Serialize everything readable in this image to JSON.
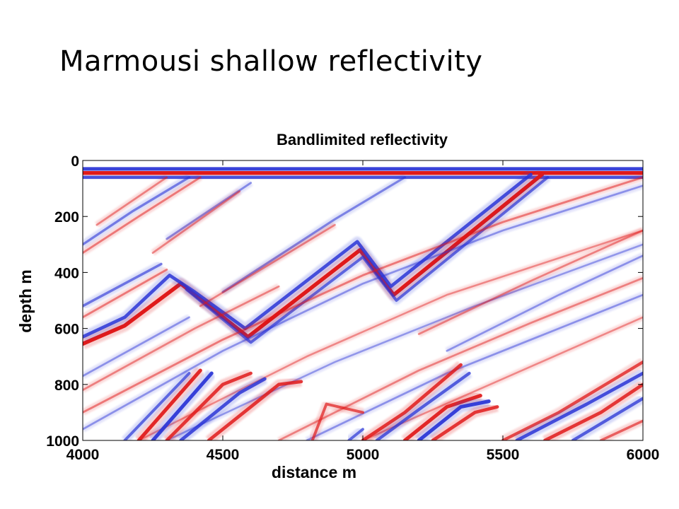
{
  "slide": {
    "title": "Marmousi shallow reflectivity"
  },
  "chart_data": {
    "type": "heatmap",
    "title": "Bandlimited reflectivity",
    "xlabel": "distance m",
    "ylabel": "depth m",
    "xlim": [
      4000,
      6000
    ],
    "ylim": [
      0,
      1000
    ],
    "y_inverted": true,
    "x_ticks": [
      4000,
      4500,
      5000,
      5500,
      6000
    ],
    "y_ticks": [
      0,
      200,
      400,
      600,
      800,
      1000
    ],
    "grid": false,
    "colormap": {
      "negative": "#2a35d6",
      "zero": "#ffffff",
      "positive": "#e01a1a"
    },
    "reflectors": [
      {
        "polarity": "positive",
        "strength": 1.0,
        "points": [
          [
            4000,
            45
          ],
          [
            6000,
            45
          ]
        ]
      },
      {
        "polarity": "negative",
        "strength": 0.9,
        "points": [
          [
            4000,
            30
          ],
          [
            6000,
            30
          ]
        ]
      },
      {
        "polarity": "negative",
        "strength": 0.8,
        "points": [
          [
            4000,
            60
          ],
          [
            6000,
            60
          ]
        ]
      },
      {
        "polarity": "positive",
        "strength": 1.0,
        "points": [
          [
            4000,
            655
          ],
          [
            4150,
            590
          ],
          [
            4350,
            440
          ],
          [
            4590,
            630
          ],
          [
            4990,
            320
          ],
          [
            5110,
            480
          ],
          [
            5640,
            50
          ]
        ]
      },
      {
        "polarity": "negative",
        "strength": 0.8,
        "points": [
          [
            4000,
            630
          ],
          [
            4150,
            560
          ],
          [
            4310,
            410
          ],
          [
            4400,
            470
          ],
          [
            4580,
            600
          ],
          [
            4980,
            290
          ],
          [
            5100,
            450
          ],
          [
            5600,
            50
          ]
        ]
      },
      {
        "polarity": "negative",
        "strength": 0.6,
        "points": [
          [
            4370,
            460
          ],
          [
            4600,
            650
          ],
          [
            5000,
            345
          ],
          [
            5120,
            500
          ],
          [
            5660,
            60
          ]
        ]
      },
      {
        "polarity": "positive",
        "strength": 0.35,
        "points": [
          [
            4000,
            560
          ],
          [
            4300,
            390
          ]
        ]
      },
      {
        "polarity": "negative",
        "strength": 0.5,
        "points": [
          [
            4000,
            520
          ],
          [
            4280,
            370
          ]
        ]
      },
      {
        "polarity": "positive",
        "strength": 0.35,
        "points": [
          [
            4000,
            330
          ],
          [
            4200,
            200
          ],
          [
            4420,
            60
          ]
        ]
      },
      {
        "polarity": "negative",
        "strength": 0.45,
        "points": [
          [
            4000,
            300
          ],
          [
            4180,
            180
          ],
          [
            4380,
            60
          ]
        ]
      },
      {
        "polarity": "positive",
        "strength": 0.3,
        "points": [
          [
            4050,
            230
          ],
          [
            4300,
            60
          ]
        ]
      },
      {
        "polarity": "negative",
        "strength": 0.35,
        "points": [
          [
            4300,
            280
          ],
          [
            4600,
            80
          ]
        ]
      },
      {
        "polarity": "positive",
        "strength": 0.3,
        "points": [
          [
            4250,
            330
          ],
          [
            4560,
            110
          ]
        ]
      },
      {
        "polarity": "negative",
        "strength": 0.4,
        "points": [
          [
            4500,
            470
          ],
          [
            4900,
            210
          ],
          [
            5150,
            60
          ]
        ]
      },
      {
        "polarity": "positive",
        "strength": 0.3,
        "points": [
          [
            4420,
            520
          ],
          [
            4900,
            230
          ]
        ]
      },
      {
        "polarity": "negative",
        "strength": 0.3,
        "points": [
          [
            4000,
            960
          ],
          [
            4500,
            680
          ],
          [
            5000,
            440
          ],
          [
            5500,
            250
          ],
          [
            6000,
            90
          ]
        ]
      },
      {
        "polarity": "positive",
        "strength": 0.35,
        "points": [
          [
            4000,
            900
          ],
          [
            4500,
            640
          ],
          [
            5000,
            410
          ],
          [
            5500,
            220
          ],
          [
            6000,
            60
          ]
        ]
      },
      {
        "polarity": "positive",
        "strength": 0.3,
        "points": [
          [
            4000,
            820
          ],
          [
            4400,
            600
          ],
          [
            4700,
            450
          ]
        ]
      },
      {
        "polarity": "negative",
        "strength": 0.3,
        "points": [
          [
            4000,
            770
          ],
          [
            4380,
            560
          ]
        ]
      },
      {
        "polarity": "positive",
        "strength": 0.25,
        "points": [
          [
            4200,
            1000
          ],
          [
            4800,
            700
          ],
          [
            5300,
            480
          ],
          [
            6000,
            250
          ]
        ]
      },
      {
        "polarity": "negative",
        "strength": 0.25,
        "points": [
          [
            4300,
            1000
          ],
          [
            4900,
            720
          ],
          [
            5400,
            520
          ],
          [
            6000,
            300
          ]
        ]
      },
      {
        "polarity": "positive",
        "strength": 0.3,
        "points": [
          [
            4700,
            1000
          ],
          [
            5200,
            750
          ],
          [
            5600,
            580
          ],
          [
            6000,
            420
          ]
        ]
      },
      {
        "polarity": "negative",
        "strength": 0.3,
        "points": [
          [
            4800,
            1000
          ],
          [
            5300,
            760
          ],
          [
            6000,
            480
          ]
        ]
      },
      {
        "polarity": "positive",
        "strength": 0.25,
        "points": [
          [
            5000,
            1000
          ],
          [
            5500,
            780
          ],
          [
            6000,
            560
          ]
        ]
      },
      {
        "polarity": "positive",
        "strength": 0.9,
        "points": [
          [
            4200,
            1000
          ],
          [
            4420,
            750
          ]
        ]
      },
      {
        "polarity": "negative",
        "strength": 0.9,
        "points": [
          [
            4250,
            1000
          ],
          [
            4460,
            760
          ]
        ]
      },
      {
        "polarity": "positive",
        "strength": 0.8,
        "points": [
          [
            4300,
            1000
          ],
          [
            4500,
            800
          ],
          [
            4600,
            760
          ]
        ]
      },
      {
        "polarity": "negative",
        "strength": 0.8,
        "points": [
          [
            4350,
            1000
          ],
          [
            4560,
            830
          ],
          [
            4650,
            780
          ]
        ]
      },
      {
        "polarity": "positive",
        "strength": 0.8,
        "points": [
          [
            4450,
            1000
          ],
          [
            4600,
            880
          ],
          [
            4700,
            800
          ],
          [
            4780,
            790
          ]
        ]
      },
      {
        "polarity": "negative",
        "strength": 0.6,
        "points": [
          [
            4150,
            1000
          ],
          [
            4380,
            760
          ]
        ]
      },
      {
        "polarity": "positive",
        "strength": 0.6,
        "points": [
          [
            4820,
            1000
          ],
          [
            4870,
            870
          ],
          [
            5000,
            900
          ]
        ]
      },
      {
        "polarity": "positive",
        "strength": 0.8,
        "points": [
          [
            5000,
            1000
          ],
          [
            5150,
            900
          ],
          [
            5350,
            730
          ]
        ]
      },
      {
        "polarity": "negative",
        "strength": 0.7,
        "points": [
          [
            5050,
            1000
          ],
          [
            5200,
            890
          ],
          [
            5380,
            760
          ]
        ]
      },
      {
        "polarity": "positive",
        "strength": 0.9,
        "points": [
          [
            5150,
            1000
          ],
          [
            5300,
            880
          ],
          [
            5420,
            840
          ]
        ]
      },
      {
        "polarity": "negative",
        "strength": 0.9,
        "points": [
          [
            5200,
            1000
          ],
          [
            5350,
            880
          ],
          [
            5450,
            860
          ]
        ]
      },
      {
        "polarity": "positive",
        "strength": 0.8,
        "points": [
          [
            5250,
            1000
          ],
          [
            5400,
            900
          ],
          [
            5480,
            880
          ]
        ]
      },
      {
        "polarity": "negative",
        "strength": 0.6,
        "points": [
          [
            4950,
            1000
          ],
          [
            5000,
            960
          ]
        ]
      },
      {
        "polarity": "positive",
        "strength": 0.7,
        "points": [
          [
            5500,
            1000
          ],
          [
            5700,
            900
          ],
          [
            6000,
            720
          ]
        ]
      },
      {
        "polarity": "negative",
        "strength": 0.8,
        "points": [
          [
            5550,
            1000
          ],
          [
            5800,
            870
          ],
          [
            6000,
            760
          ]
        ]
      },
      {
        "polarity": "positive",
        "strength": 0.8,
        "points": [
          [
            5650,
            1000
          ],
          [
            5850,
            900
          ],
          [
            6000,
            800
          ]
        ]
      },
      {
        "polarity": "negative",
        "strength": 0.7,
        "points": [
          [
            5750,
            1000
          ],
          [
            6000,
            850
          ]
        ]
      },
      {
        "polarity": "positive",
        "strength": 0.5,
        "points": [
          [
            5850,
            1000
          ],
          [
            6000,
            930
          ]
        ]
      },
      {
        "polarity": "positive",
        "strength": 0.3,
        "points": [
          [
            5200,
            620
          ],
          [
            5600,
            430
          ],
          [
            6000,
            250
          ]
        ]
      },
      {
        "polarity": "negative",
        "strength": 0.3,
        "points": [
          [
            5300,
            680
          ],
          [
            5700,
            480
          ],
          [
            6000,
            340
          ]
        ]
      }
    ]
  }
}
